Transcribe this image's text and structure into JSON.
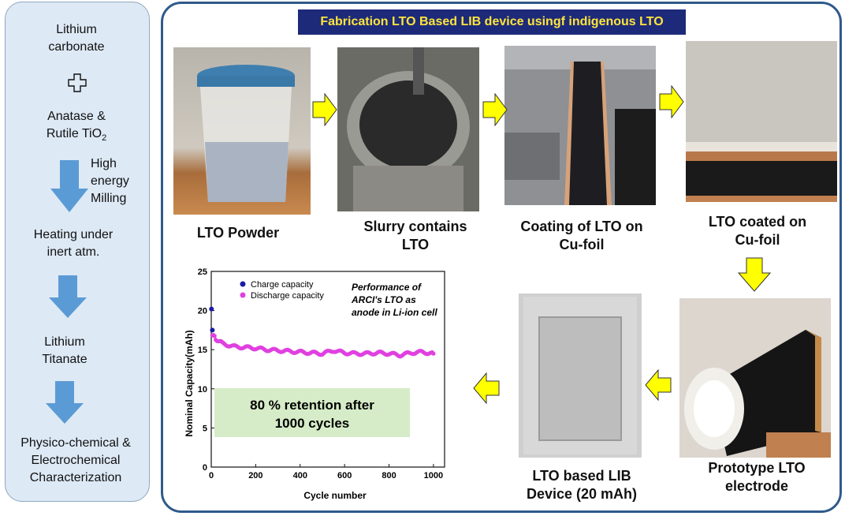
{
  "left_panel": {
    "step1": [
      "Lithium",
      "carbonate"
    ],
    "step2": [
      "Anatase &",
      "Rutile TiO"
    ],
    "step2_sub": "2",
    "milling": [
      "High",
      "energy",
      "Milling"
    ],
    "step3": [
      "Heating under",
      "inert atm."
    ],
    "step4": [
      "Lithium",
      "Titanate"
    ],
    "step5": [
      "Physico-chemical &",
      "Electrochemical",
      "Characterization"
    ]
  },
  "banner": "Fabrication LTO Based LIB device usingf indigenous LTO",
  "captions": {
    "powder": "LTO Powder",
    "slurry": [
      "Slurry contains",
      "LTO"
    ],
    "coating": [
      "Coating of LTO on",
      "Cu-foil"
    ],
    "coated": [
      "LTO coated on",
      "Cu-foil"
    ],
    "electrode": [
      "Prototype LTO",
      "electrode"
    ],
    "device": [
      "LTO based LIB",
      "Device (20 mAh)"
    ]
  },
  "colors": {
    "banner_bg": "#1d2a7a",
    "banner_text": "#ffe53b",
    "arrow_yellow": "#ffff00",
    "arrow_blue": "#5b9bd5"
  },
  "chart_data": {
    "type": "scatter",
    "xlabel": "Cycle number",
    "ylabel": "Nominal Capacity(mAh)",
    "xlim": [
      0,
      1050
    ],
    "ylim": [
      0,
      25
    ],
    "xticks": [
      "0",
      "200",
      "400",
      "600",
      "800",
      "1000"
    ],
    "yticks": [
      "0",
      "5",
      "10",
      "15",
      "20",
      "25"
    ],
    "series": [
      {
        "name": "Charge capacity",
        "color": "#1a1aa6",
        "x": [
          1,
          5
        ],
        "y": [
          20.2,
          17.5
        ]
      },
      {
        "name": "Discharge capacity",
        "color": "#e040e0",
        "x": [
          5,
          20,
          50,
          100,
          150,
          200,
          250,
          300,
          350,
          400,
          450,
          500,
          550,
          600,
          650,
          700,
          750,
          800,
          850,
          900,
          950,
          1000
        ],
        "y": [
          17.0,
          16.4,
          15.8,
          15.4,
          15.3,
          15.2,
          15.0,
          14.9,
          14.8,
          14.7,
          14.6,
          14.5,
          14.9,
          14.6,
          14.5,
          14.5,
          14.6,
          14.5,
          14.3,
          14.6,
          14.7,
          14.5
        ]
      }
    ],
    "legend_position": "top-left",
    "annotation": [
      "Performance of",
      "ARCI's LTO as",
      "anode in Li-ion cell"
    ],
    "retention": [
      "80 % retention after",
      "1000 cycles"
    ]
  }
}
